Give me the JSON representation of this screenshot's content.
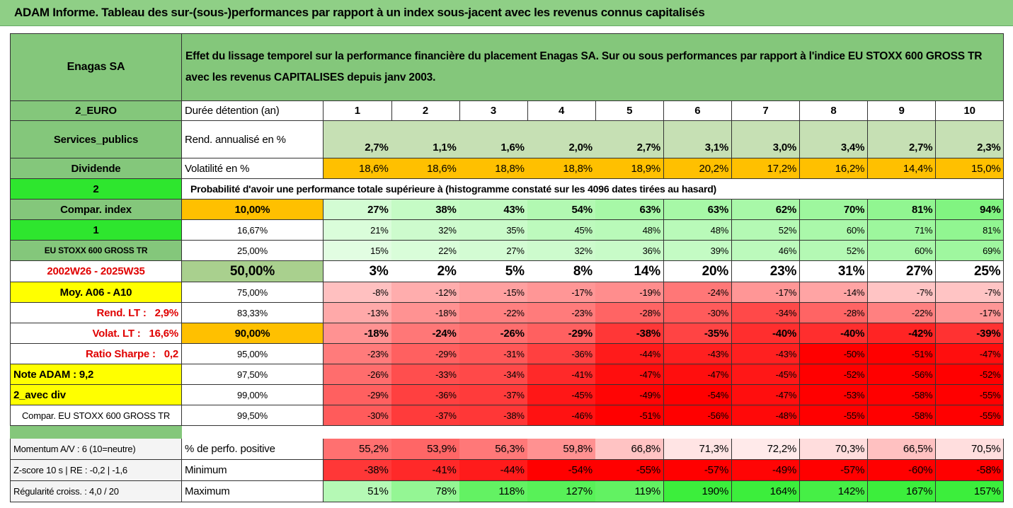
{
  "title": "ADAM Informe. Tableau des sur-(sous-)performances par rapport à un index sous-jacent avec les revenus connus capitalisés",
  "header": {
    "name": "Enagas SA",
    "description": "Effet du lissage temporel sur la performance financière du placement Enagas SA. Sur ou sous performances par rapport à l'indice EU STOXX 600 GROSS TR avec les revenus CAPITALISES depuis janv 2003."
  },
  "rows": [
    {
      "side": "2_EURO",
      "label": "Durée détention (an)",
      "cells": [
        "1",
        "2",
        "3",
        "4",
        "5",
        "6",
        "7",
        "8",
        "9",
        "10"
      ]
    },
    {
      "side": "Services_publics",
      "label": "Rend. annualisé en %",
      "cells": [
        "2,7%",
        "1,1%",
        "1,6%",
        "2,0%",
        "2,7%",
        "3,1%",
        "3,0%",
        "3,4%",
        "2,7%",
        "2,3%"
      ]
    },
    {
      "side": "Dividende",
      "label": "Volatilité en %",
      "cells": [
        "18,6%",
        "18,6%",
        "18,8%",
        "18,8%",
        "18,9%",
        "20,2%",
        "17,2%",
        "16,2%",
        "14,4%",
        "15,0%"
      ]
    },
    {
      "side": "2",
      "note": "Probabilité d'avoir une performance totale supérieure à (histogramme constaté sur les 4096 dates tirées au hasard)"
    },
    {
      "side": "Compar. index",
      "label": "10,00%",
      "cells": [
        "27%",
        "38%",
        "43%",
        "54%",
        "63%",
        "63%",
        "62%",
        "70%",
        "81%",
        "94%"
      ]
    },
    {
      "side": "1",
      "label": "16,67%",
      "cells": [
        "21%",
        "32%",
        "35%",
        "45%",
        "48%",
        "48%",
        "52%",
        "60%",
        "71%",
        "81%"
      ]
    },
    {
      "side": "EU STOXX 600 GROSS TR",
      "label": "25,00%",
      "cells": [
        "15%",
        "22%",
        "27%",
        "32%",
        "36%",
        "39%",
        "46%",
        "52%",
        "60%",
        "69%"
      ]
    },
    {
      "side": "2002W26 - 2025W35",
      "label": "50,00%",
      "cells": [
        "3%",
        "2%",
        "5%",
        "8%",
        "14%",
        "20%",
        "23%",
        "31%",
        "27%",
        "25%"
      ]
    },
    {
      "side": "Moy. A06 - A10",
      "label": "75,00%",
      "cells": [
        "-8%",
        "-12%",
        "-15%",
        "-17%",
        "-19%",
        "-24%",
        "-17%",
        "-14%",
        "-7%",
        "-7%"
      ]
    },
    {
      "side": "Rend. LT :   2,9%",
      "label": "83,33%",
      "cells": [
        "-13%",
        "-18%",
        "-22%",
        "-23%",
        "-28%",
        "-30%",
        "-34%",
        "-28%",
        "-22%",
        "-17%"
      ]
    },
    {
      "side": "Volat. LT :   16,6%",
      "label": "90,00%",
      "cells": [
        "-18%",
        "-24%",
        "-26%",
        "-29%",
        "-38%",
        "-35%",
        "-40%",
        "-40%",
        "-42%",
        "-39%"
      ]
    },
    {
      "side": "Ratio Sharpe :   0,2",
      "label": "95,00%",
      "cells": [
        "-23%",
        "-29%",
        "-31%",
        "-36%",
        "-44%",
        "-43%",
        "-43%",
        "-50%",
        "-51%",
        "-47%"
      ]
    },
    {
      "side": "Note ADAM : 9,2",
      "label": "97,50%",
      "cells": [
        "-26%",
        "-33%",
        "-34%",
        "-41%",
        "-47%",
        "-47%",
        "-45%",
        "-52%",
        "-56%",
        "-52%"
      ]
    },
    {
      "side": "2_avec div",
      "label": "99,00%",
      "cells": [
        "-29%",
        "-36%",
        "-37%",
        "-45%",
        "-49%",
        "-54%",
        "-47%",
        "-53%",
        "-58%",
        "-55%"
      ]
    },
    {
      "side": "Compar. EU STOXX 600 GROSS TR",
      "label": "99,50%",
      "cells": [
        "-30%",
        "-37%",
        "-38%",
        "-46%",
        "-51%",
        "-56%",
        "-48%",
        "-55%",
        "-58%",
        "-55%"
      ]
    },
    {
      "side": "Momentum A/V : 6 (10=neutre)",
      "label": "% de perfo. positive",
      "cells": [
        "55,2%",
        "53,9%",
        "56,3%",
        "59,8%",
        "66,8%",
        "71,3%",
        "72,2%",
        "70,3%",
        "66,5%",
        "70,5%"
      ]
    },
    {
      "side": "Z-score 10 s | RE : -0,2 | -1,6",
      "label": "Minimum",
      "cells": [
        "-38%",
        "-41%",
        "-44%",
        "-54%",
        "-55%",
        "-57%",
        "-49%",
        "-57%",
        "-60%",
        "-58%"
      ]
    },
    {
      "side": "Régularité croiss. : 4,0 / 20",
      "label": "Maximum",
      "cells": [
        "51%",
        "78%",
        "118%",
        "127%",
        "119%",
        "190%",
        "164%",
        "142%",
        "167%",
        "157%"
      ]
    }
  ]
}
